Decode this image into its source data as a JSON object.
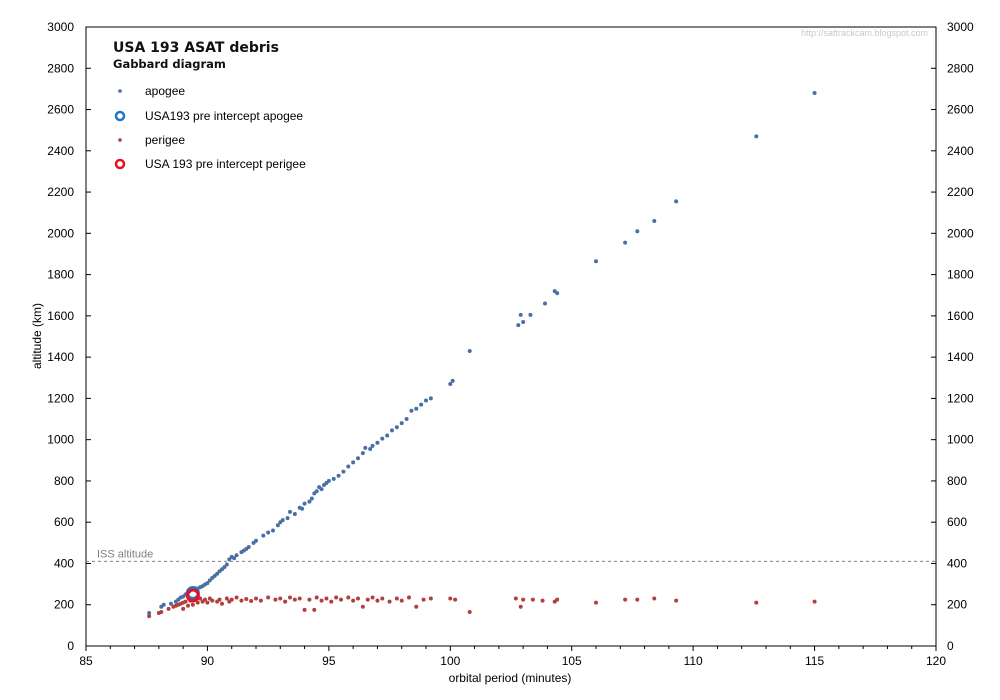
{
  "watermark": "http://sattrackcam.blogspot.com",
  "chart_data": {
    "type": "scatter",
    "title": "USA 193 ASAT debris",
    "subtitle": "Gabbard diagram",
    "xlabel": "orbital period (minutes)",
    "ylabel": "altitude (km)",
    "xlim": [
      85,
      120
    ],
    "ylim": [
      0,
      3000
    ],
    "xticks": [
      "85",
      "90",
      "95",
      "100",
      "105",
      "110",
      "115",
      "120"
    ],
    "yticks": [
      "0",
      "200",
      "400",
      "600",
      "800",
      "1000",
      "1200",
      "1400",
      "1600",
      "1800",
      "2000",
      "2200",
      "2400",
      "2600",
      "2800",
      "3000"
    ],
    "grid": false,
    "legend_position": "top-left",
    "reference_line": {
      "label": "ISS altitude",
      "y": 410,
      "color": "#808080"
    },
    "series": [
      {
        "name": "apogee",
        "marker": "dot",
        "color": "#4a6fa5",
        "points": [
          [
            87.6,
            160
          ],
          [
            88.1,
            190
          ],
          [
            88.2,
            200
          ],
          [
            88.5,
            205
          ],
          [
            88.7,
            215
          ],
          [
            88.8,
            225
          ],
          [
            88.9,
            235
          ],
          [
            89.0,
            240
          ],
          [
            89.1,
            250
          ],
          [
            89.2,
            258
          ],
          [
            89.25,
            265
          ],
          [
            89.3,
            270
          ],
          [
            89.4,
            275
          ],
          [
            89.5,
            280
          ],
          [
            89.6,
            278
          ],
          [
            89.7,
            285
          ],
          [
            89.8,
            290
          ],
          [
            89.9,
            298
          ],
          [
            90.0,
            305
          ],
          [
            90.1,
            318
          ],
          [
            90.2,
            330
          ],
          [
            90.3,
            340
          ],
          [
            90.4,
            350
          ],
          [
            90.5,
            362
          ],
          [
            90.6,
            372
          ],
          [
            90.7,
            382
          ],
          [
            90.8,
            395
          ],
          [
            90.9,
            420
          ],
          [
            91.0,
            432
          ],
          [
            91.1,
            425
          ],
          [
            91.2,
            440
          ],
          [
            91.4,
            455
          ],
          [
            91.5,
            462
          ],
          [
            91.6,
            470
          ],
          [
            91.7,
            480
          ],
          [
            91.9,
            500
          ],
          [
            92.0,
            510
          ],
          [
            92.3,
            535
          ],
          [
            92.5,
            550
          ],
          [
            92.7,
            560
          ],
          [
            92.9,
            585
          ],
          [
            93.0,
            600
          ],
          [
            93.1,
            610
          ],
          [
            93.3,
            620
          ],
          [
            93.4,
            650
          ],
          [
            93.6,
            640
          ],
          [
            93.8,
            670
          ],
          [
            93.9,
            665
          ],
          [
            94.0,
            690
          ],
          [
            94.2,
            700
          ],
          [
            94.3,
            715
          ],
          [
            94.4,
            740
          ],
          [
            94.5,
            750
          ],
          [
            94.6,
            770
          ],
          [
            94.7,
            760
          ],
          [
            94.8,
            780
          ],
          [
            94.9,
            790
          ],
          [
            95.0,
            800
          ],
          [
            95.2,
            810
          ],
          [
            95.4,
            825
          ],
          [
            95.6,
            845
          ],
          [
            95.8,
            870
          ],
          [
            96.0,
            890
          ],
          [
            96.2,
            910
          ],
          [
            96.4,
            935
          ],
          [
            96.5,
            960
          ],
          [
            96.7,
            955
          ],
          [
            96.8,
            970
          ],
          [
            97.0,
            985
          ],
          [
            97.2,
            1005
          ],
          [
            97.4,
            1020
          ],
          [
            97.6,
            1045
          ],
          [
            97.8,
            1060
          ],
          [
            98.0,
            1080
          ],
          [
            98.2,
            1100
          ],
          [
            98.4,
            1140
          ],
          [
            98.6,
            1150
          ],
          [
            98.8,
            1170
          ],
          [
            99.0,
            1190
          ],
          [
            99.2,
            1200
          ],
          [
            100.0,
            1270
          ],
          [
            100.1,
            1285
          ],
          [
            100.8,
            1430
          ],
          [
            102.8,
            1555
          ],
          [
            102.9,
            1605
          ],
          [
            103.0,
            1570
          ],
          [
            103.3,
            1605
          ],
          [
            103.9,
            1660
          ],
          [
            104.3,
            1720
          ],
          [
            104.4,
            1710
          ],
          [
            106.0,
            1865
          ],
          [
            107.2,
            1955
          ],
          [
            107.7,
            2010
          ],
          [
            108.4,
            2060
          ],
          [
            109.3,
            2155
          ],
          [
            112.6,
            2470
          ],
          [
            115.0,
            2680
          ]
        ]
      },
      {
        "name": "USA193 pre intercept apogee",
        "marker": "ring",
        "color": "#1f78c1",
        "points": [
          [
            89.4,
            257
          ]
        ]
      },
      {
        "name": "perigee",
        "marker": "dot",
        "color": "#b24040",
        "points": [
          [
            87.6,
            145
          ],
          [
            88.0,
            160
          ],
          [
            88.1,
            165
          ],
          [
            88.4,
            180
          ],
          [
            88.6,
            190
          ],
          [
            88.7,
            195
          ],
          [
            88.8,
            200
          ],
          [
            88.9,
            205
          ],
          [
            89.0,
            210
          ],
          [
            89.0,
            180
          ],
          [
            89.1,
            215
          ],
          [
            89.2,
            195
          ],
          [
            89.3,
            220
          ],
          [
            89.4,
            200
          ],
          [
            89.5,
            225
          ],
          [
            89.6,
            210
          ],
          [
            89.7,
            230
          ],
          [
            89.8,
            215
          ],
          [
            89.9,
            225
          ],
          [
            90.0,
            210
          ],
          [
            90.1,
            230
          ],
          [
            90.2,
            220
          ],
          [
            90.4,
            215
          ],
          [
            90.5,
            225
          ],
          [
            90.6,
            205
          ],
          [
            90.8,
            230
          ],
          [
            90.9,
            215
          ],
          [
            91.0,
            225
          ],
          [
            91.2,
            235
          ],
          [
            91.4,
            220
          ],
          [
            91.6,
            228
          ],
          [
            91.8,
            218
          ],
          [
            92.0,
            230
          ],
          [
            92.2,
            220
          ],
          [
            92.5,
            235
          ],
          [
            92.8,
            225
          ],
          [
            93.0,
            230
          ],
          [
            93.2,
            215
          ],
          [
            93.4,
            235
          ],
          [
            93.6,
            225
          ],
          [
            93.8,
            230
          ],
          [
            94.0,
            175
          ],
          [
            94.2,
            225
          ],
          [
            94.4,
            175
          ],
          [
            94.5,
            235
          ],
          [
            94.7,
            220
          ],
          [
            94.9,
            230
          ],
          [
            95.1,
            215
          ],
          [
            95.3,
            235
          ],
          [
            95.5,
            225
          ],
          [
            95.8,
            235
          ],
          [
            96.0,
            220
          ],
          [
            96.2,
            230
          ],
          [
            96.4,
            190
          ],
          [
            96.6,
            225
          ],
          [
            96.8,
            235
          ],
          [
            97.0,
            220
          ],
          [
            97.2,
            230
          ],
          [
            97.5,
            215
          ],
          [
            97.8,
            230
          ],
          [
            98.0,
            220
          ],
          [
            98.3,
            235
          ],
          [
            98.6,
            190
          ],
          [
            98.9,
            225
          ],
          [
            99.2,
            230
          ],
          [
            100.0,
            230
          ],
          [
            100.2,
            225
          ],
          [
            100.8,
            165
          ],
          [
            102.7,
            230
          ],
          [
            102.9,
            190
          ],
          [
            103.0,
            225
          ],
          [
            103.4,
            225
          ],
          [
            103.8,
            220
          ],
          [
            104.3,
            215
          ],
          [
            104.4,
            225
          ],
          [
            106.0,
            210
          ],
          [
            107.2,
            225
          ],
          [
            107.7,
            225
          ],
          [
            108.4,
            230
          ],
          [
            109.3,
            220
          ],
          [
            112.6,
            210
          ],
          [
            115.0,
            215
          ]
        ]
      },
      {
        "name": "USA 193 pre intercept perigee",
        "marker": "ring",
        "color": "#e8101e",
        "points": [
          [
            89.4,
            245
          ]
        ]
      }
    ]
  }
}
